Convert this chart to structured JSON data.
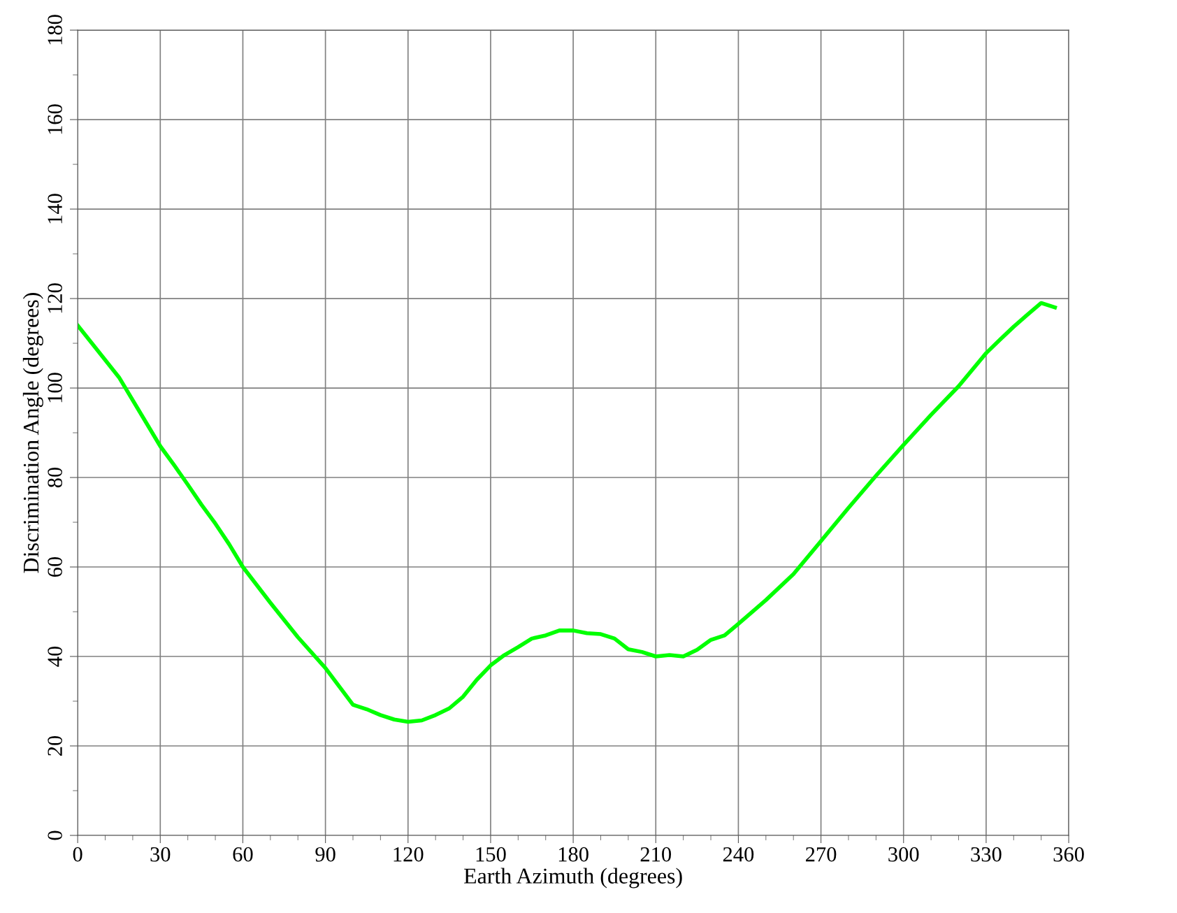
{
  "chart_data": {
    "type": "line",
    "xlabel": "Earth Azimuth (degrees)",
    "ylabel": "Discrimination Angle (degrees)",
    "x": [
      0,
      15,
      30,
      35,
      40,
      45,
      50,
      55,
      60,
      70,
      80,
      90,
      95,
      100,
      105,
      110,
      115,
      120,
      125,
      130,
      135,
      140,
      145,
      150,
      155,
      160,
      165,
      170,
      175,
      180,
      185,
      190,
      195,
      200,
      205,
      210,
      215,
      220,
      225,
      230,
      235,
      240,
      250,
      260,
      270,
      280,
      290,
      300,
      310,
      320,
      330,
      335,
      340,
      345,
      350,
      355
    ],
    "series": [
      {
        "color": "#00ff00",
        "values": [
          114,
          102.4,
          87,
          82.8,
          78.4,
          73.9,
          69.7,
          65.1,
          60,
          52,
          44.3,
          37.4,
          33.3,
          29.2,
          28.2,
          26.9,
          25.9,
          25.4,
          25.7,
          26.9,
          28.4,
          31,
          34.8,
          38,
          40.3,
          42.1,
          44,
          44.7,
          45.8,
          45.8,
          45.2,
          45,
          44,
          41.6,
          41,
          40,
          40.3,
          40,
          41.5,
          43.7,
          44.7,
          47.3,
          52.6,
          58.4,
          65.8,
          73.2,
          80.4,
          87.3,
          94,
          100.4,
          107.8,
          110.8,
          113.7,
          116.4,
          119,
          118
        ]
      }
    ],
    "xlim": [
      0,
      360
    ],
    "xticks": [
      0,
      30,
      60,
      90,
      120,
      150,
      180,
      210,
      240,
      270,
      300,
      330,
      360
    ],
    "ylim": [
      0,
      180
    ],
    "yticks": [
      0,
      20,
      40,
      60,
      80,
      100,
      120,
      140,
      160,
      180
    ],
    "grid": true,
    "legend": false,
    "line_style": "solid"
  }
}
